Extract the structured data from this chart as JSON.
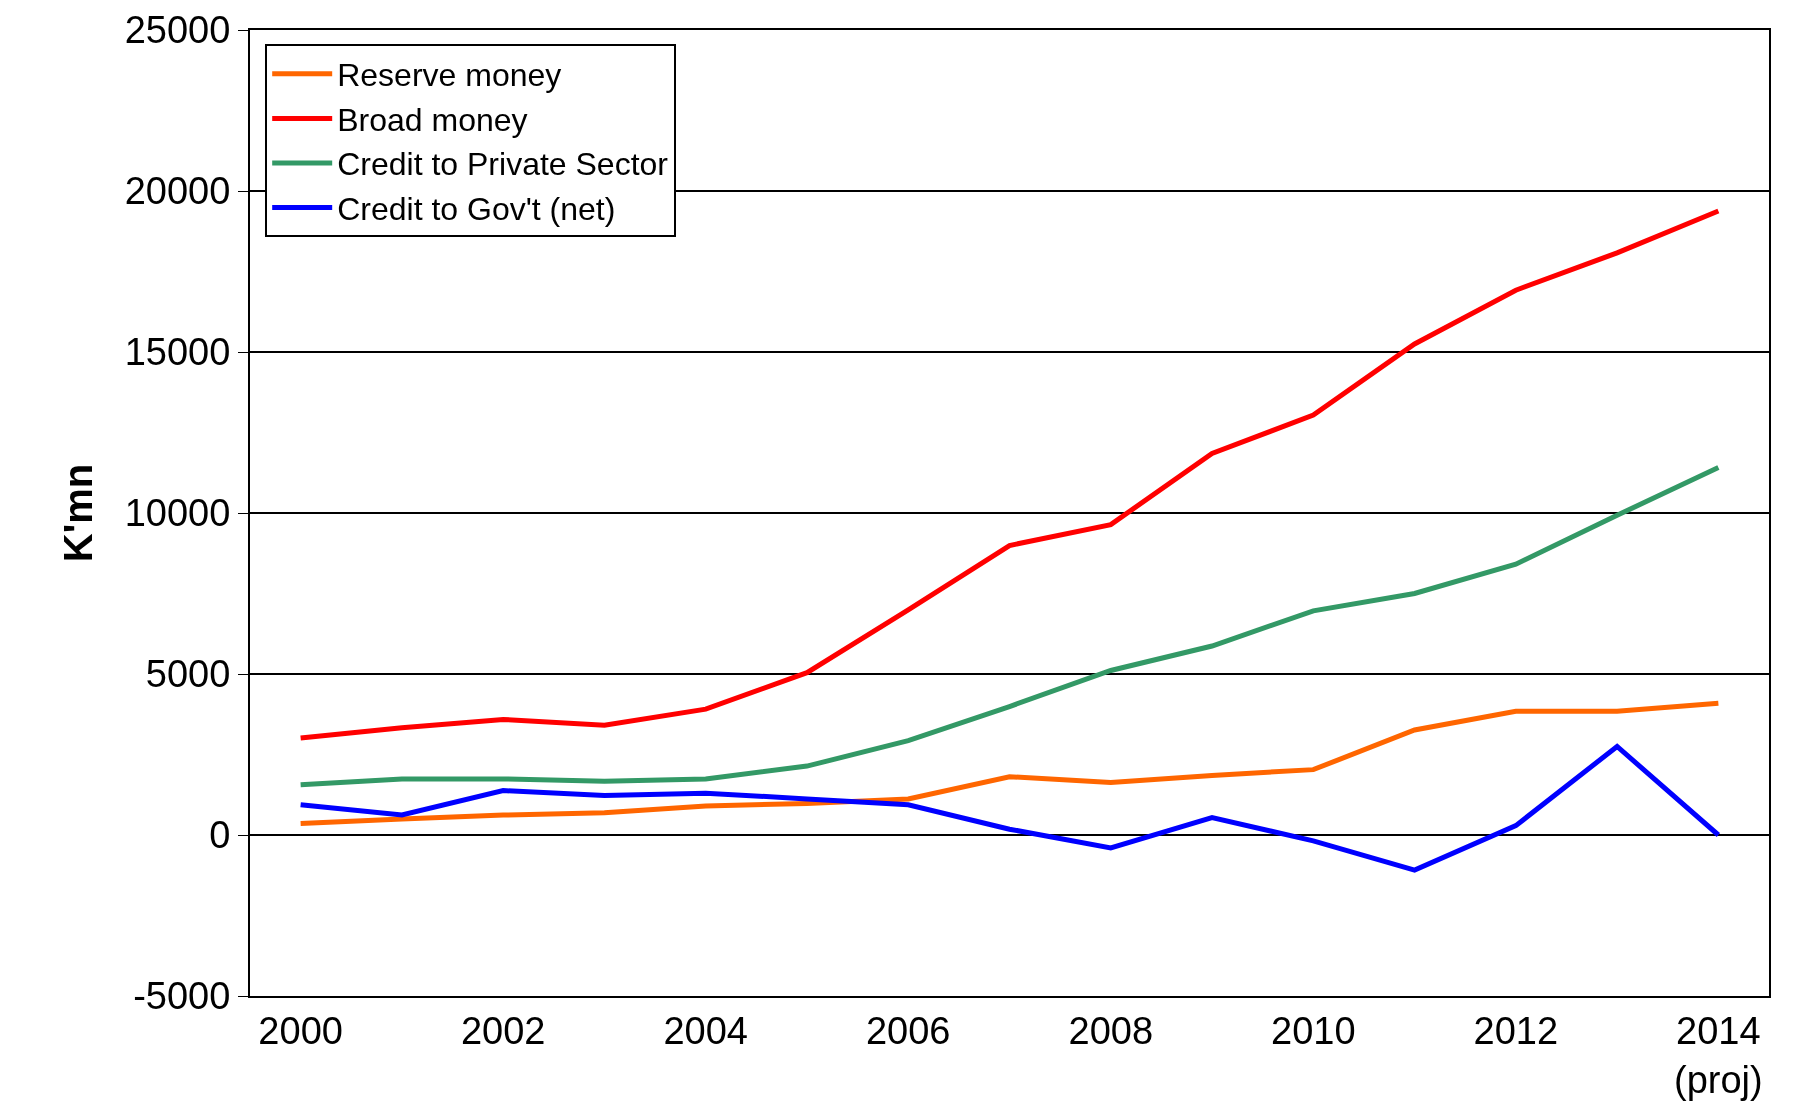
{
  "chart_data": {
    "type": "line",
    "ylabel": "K'mn",
    "categories": [
      "2000",
      null,
      "2002",
      null,
      "2004",
      null,
      "2006",
      null,
      "2008",
      null,
      "2010",
      null,
      "2012",
      null,
      "2014\n(proj)"
    ],
    "series": [
      {
        "name": "Reserve money",
        "color": "#ff6600",
        "values": [
          360,
          500,
          620,
          690,
          900,
          980,
          1120,
          1810,
          1630,
          1850,
          2030,
          3260,
          3840,
          3840,
          4090
        ]
      },
      {
        "name": "Broad money",
        "color": "#ff0000",
        "values": [
          3010,
          3330,
          3590,
          3410,
          3910,
          5040,
          6990,
          8990,
          9640,
          11850,
          13040,
          15250,
          16920,
          18080,
          19380
        ]
      },
      {
        "name": "Credit to Private Sector",
        "color": "#339966",
        "values": [
          1560,
          1740,
          1740,
          1670,
          1740,
          2140,
          2930,
          3990,
          5110,
          5870,
          6960,
          7500,
          8410,
          9930,
          11410
        ]
      },
      {
        "name": "Credit to Gov't (net)",
        "color": "#0000ff",
        "values": [
          940,
          620,
          1380,
          1230,
          1300,
          1120,
          940,
          180,
          -400,
          540,
          -180,
          -1090,
          290,
          2750,
          0
        ]
      }
    ],
    "ylim": [
      -5000,
      25000
    ],
    "yticks": [
      -5000,
      0,
      5000,
      10000,
      15000,
      20000,
      25000
    ],
    "grid": "y",
    "legend": "top left",
    "marker": "none",
    "line_style": "solid"
  }
}
